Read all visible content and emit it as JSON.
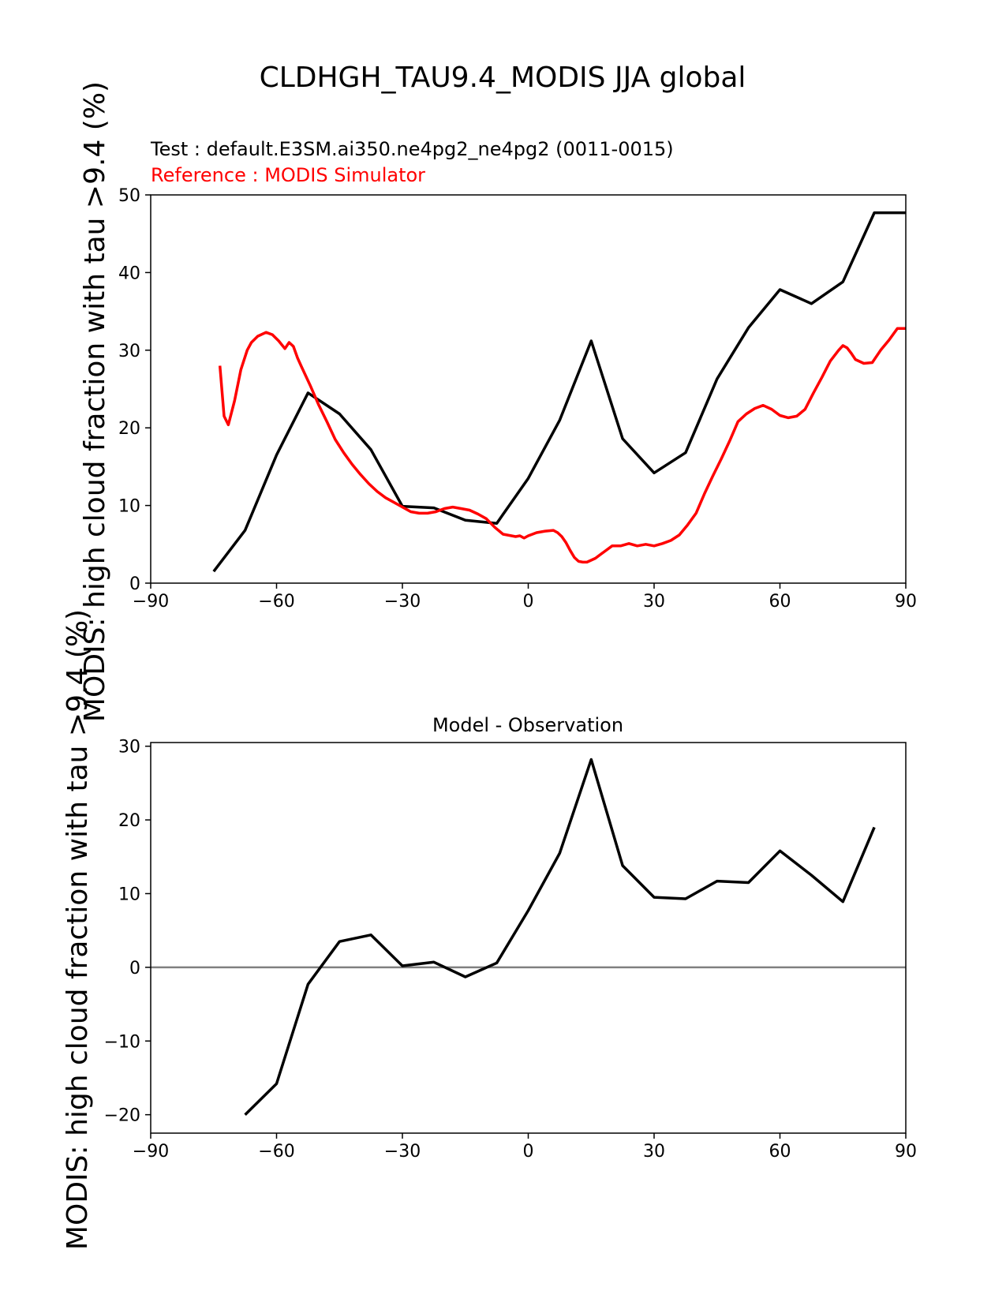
{
  "figure": {
    "suptitle": "CLDHGH_TAU9.4_MODIS JJA global"
  },
  "top_panel": {
    "test_label": "Test : default.E3SM.ai350.ne4pg2_ne4pg2 (0011-0015)",
    "reference_label": "Reference : MODIS Simulator",
    "ylabel": "MODIS: high cloud fraction with tau >9.4 (%)",
    "colors": {
      "test": "#000000",
      "reference": "#ff0000"
    }
  },
  "bottom_panel": {
    "title": "Model - Observation",
    "ylabel": "MODIS: high cloud fraction with tau >9.4 (%)",
    "colors": {
      "diff": "#000000",
      "zero_line": "#808080"
    }
  },
  "chart_data": [
    {
      "type": "line",
      "xlim": [
        -90,
        90
      ],
      "ylim": [
        0,
        50
      ],
      "xticks": [
        -90,
        -60,
        -30,
        0,
        30,
        60,
        90
      ],
      "yticks": [
        0,
        10,
        20,
        30,
        40,
        50
      ],
      "grid": false,
      "series": [
        {
          "x": [
            -75,
            -67.5,
            -60,
            -52.5,
            -45,
            -37.5,
            -30,
            -22.5,
            -15,
            -7.5,
            0,
            7.5,
            15,
            22.5,
            30,
            37.5,
            45,
            52.5,
            60,
            67.5,
            75,
            82.5,
            90
          ],
          "values": [
            1.5,
            6.8,
            16.5,
            24.5,
            21.8,
            17.2,
            9.9,
            9.7,
            8.1,
            7.7,
            13.5,
            21.0,
            31.2,
            18.6,
            14.2,
            16.8,
            26.3,
            32.9,
            37.8,
            36.0,
            38.8,
            47.7,
            47.7
          ]
        },
        {
          "x": [
            -73.5,
            -72.5,
            -71.5,
            -70,
            -68.5,
            -67,
            -66,
            -64.5,
            -62.5,
            -61,
            -59.5,
            -58,
            -57,
            -56,
            -55,
            -54,
            -52,
            -50,
            -48,
            -46,
            -44,
            -42,
            -40,
            -38,
            -36,
            -34,
            -32,
            -30,
            -28,
            -26,
            -24,
            -22,
            -20,
            -18,
            -16,
            -14,
            -12,
            -10,
            -8,
            -6,
            -4,
            -3,
            -2,
            -1,
            0,
            2,
            4,
            6,
            7,
            8,
            9,
            10,
            11,
            12,
            13,
            14,
            16,
            18,
            20,
            22,
            24,
            26,
            28,
            30,
            32,
            34,
            36,
            38,
            40,
            42,
            44,
            46,
            48,
            50,
            52,
            54,
            56,
            58,
            60,
            62,
            64,
            66,
            68,
            70,
            72,
            74,
            75,
            76,
            77,
            78,
            80,
            82,
            84,
            86,
            88,
            90
          ],
          "values": [
            28,
            21.5,
            20.4,
            23.5,
            27.5,
            30.0,
            31.0,
            31.8,
            32.3,
            32.0,
            31.2,
            30.2,
            31.0,
            30.5,
            29.0,
            27.8,
            25.5,
            23.0,
            20.8,
            18.5,
            16.8,
            15.3,
            14.0,
            12.8,
            11.8,
            11.0,
            10.4,
            9.8,
            9.2,
            9.0,
            9.0,
            9.2,
            9.6,
            9.8,
            9.6,
            9.4,
            8.9,
            8.3,
            7.2,
            6.3,
            6.1,
            6.0,
            6.1,
            5.8,
            6.1,
            6.5,
            6.7,
            6.8,
            6.5,
            6.0,
            5.2,
            4.2,
            3.3,
            2.8,
            2.7,
            2.7,
            3.2,
            4.0,
            4.8,
            4.8,
            5.1,
            4.8,
            5.0,
            4.8,
            5.1,
            5.5,
            6.2,
            7.5,
            9.0,
            11.5,
            13.8,
            16.0,
            18.3,
            20.8,
            21.8,
            22.5,
            22.9,
            22.4,
            21.6,
            21.3,
            21.5,
            22.4,
            24.5,
            26.5,
            28.6,
            30.0,
            30.6,
            30.3,
            29.6,
            28.8,
            28.3,
            28.4,
            30.0,
            31.3,
            32.8,
            32.8
          ]
        }
      ]
    },
    {
      "type": "line",
      "title": "Model - Observation",
      "xlim": [
        -90,
        90
      ],
      "ylim": [
        -22.5,
        30.5
      ],
      "xticks": [
        -90,
        -60,
        -30,
        0,
        30,
        60,
        90
      ],
      "yticks": [
        -20,
        -10,
        0,
        10,
        20,
        30
      ],
      "grid": false,
      "zero_line": 0,
      "series": [
        {
          "x": [
            -67.5,
            -60,
            -52.5,
            -45,
            -37.5,
            -30,
            -22.5,
            -15,
            -7.5,
            0,
            7.5,
            15,
            22.5,
            30,
            37.5,
            45,
            52.5,
            60,
            67.5,
            75,
            82.5
          ],
          "values": [
            -20.0,
            -15.8,
            -2.3,
            3.5,
            4.4,
            0.2,
            0.7,
            -1.3,
            0.6,
            7.7,
            15.5,
            28.2,
            13.8,
            9.5,
            9.3,
            11.7,
            11.5,
            15.8,
            12.5,
            8.9,
            19.0
          ]
        }
      ]
    }
  ]
}
